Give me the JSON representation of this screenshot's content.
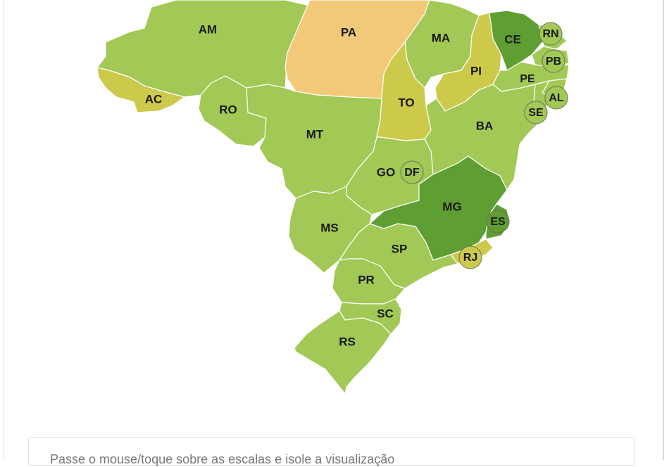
{
  "colors": {
    "level_light": "#a2c855",
    "level_mid": "#8cba48",
    "level_dark": "#5e9e32",
    "level_yellow": "#cdc94b",
    "level_orange": "#f2c979",
    "border": "#ffffff"
  },
  "states": {
    "AM": {
      "label": "AM",
      "color": "#a2c855"
    },
    "PA": {
      "label": "PA",
      "color": "#f2c979"
    },
    "AC": {
      "label": "AC",
      "color": "#cdc94b"
    },
    "RO": {
      "label": "RO",
      "color": "#a2c855"
    },
    "MT": {
      "label": "MT",
      "color": "#a2c855"
    },
    "MA": {
      "label": "MA",
      "color": "#a2c855"
    },
    "TO": {
      "label": "TO",
      "color": "#cdc94b"
    },
    "PI": {
      "label": "PI",
      "color": "#cdc94b"
    },
    "CE": {
      "label": "CE",
      "color": "#5e9e32"
    },
    "RN": {
      "label": "RN",
      "color": "#a2c855"
    },
    "PB": {
      "label": "PB",
      "color": "#a2c855"
    },
    "PE": {
      "label": "PE",
      "color": "#a2c855"
    },
    "AL": {
      "label": "AL",
      "color": "#a2c855"
    },
    "SE": {
      "label": "SE",
      "color": "#a2c855"
    },
    "BA": {
      "label": "BA",
      "color": "#a2c855"
    },
    "GO": {
      "label": "GO",
      "color": "#a2c855"
    },
    "DF": {
      "label": "DF",
      "color": "#a2c855"
    },
    "MG": {
      "label": "MG",
      "color": "#5e9e32"
    },
    "ES": {
      "label": "ES",
      "color": "#5e9e32"
    },
    "RJ": {
      "label": "RJ",
      "color": "#cdc94b"
    },
    "MS": {
      "label": "MS",
      "color": "#a2c855"
    },
    "SP": {
      "label": "SP",
      "color": "#a2c855"
    },
    "PR": {
      "label": "PR",
      "color": "#a2c855"
    },
    "SC": {
      "label": "SC",
      "color": "#a2c855"
    },
    "RS": {
      "label": "RS",
      "color": "#a2c855"
    }
  },
  "hint": {
    "text": "Passe o mouse/toque sobre as escalas e isole a visualização"
  }
}
